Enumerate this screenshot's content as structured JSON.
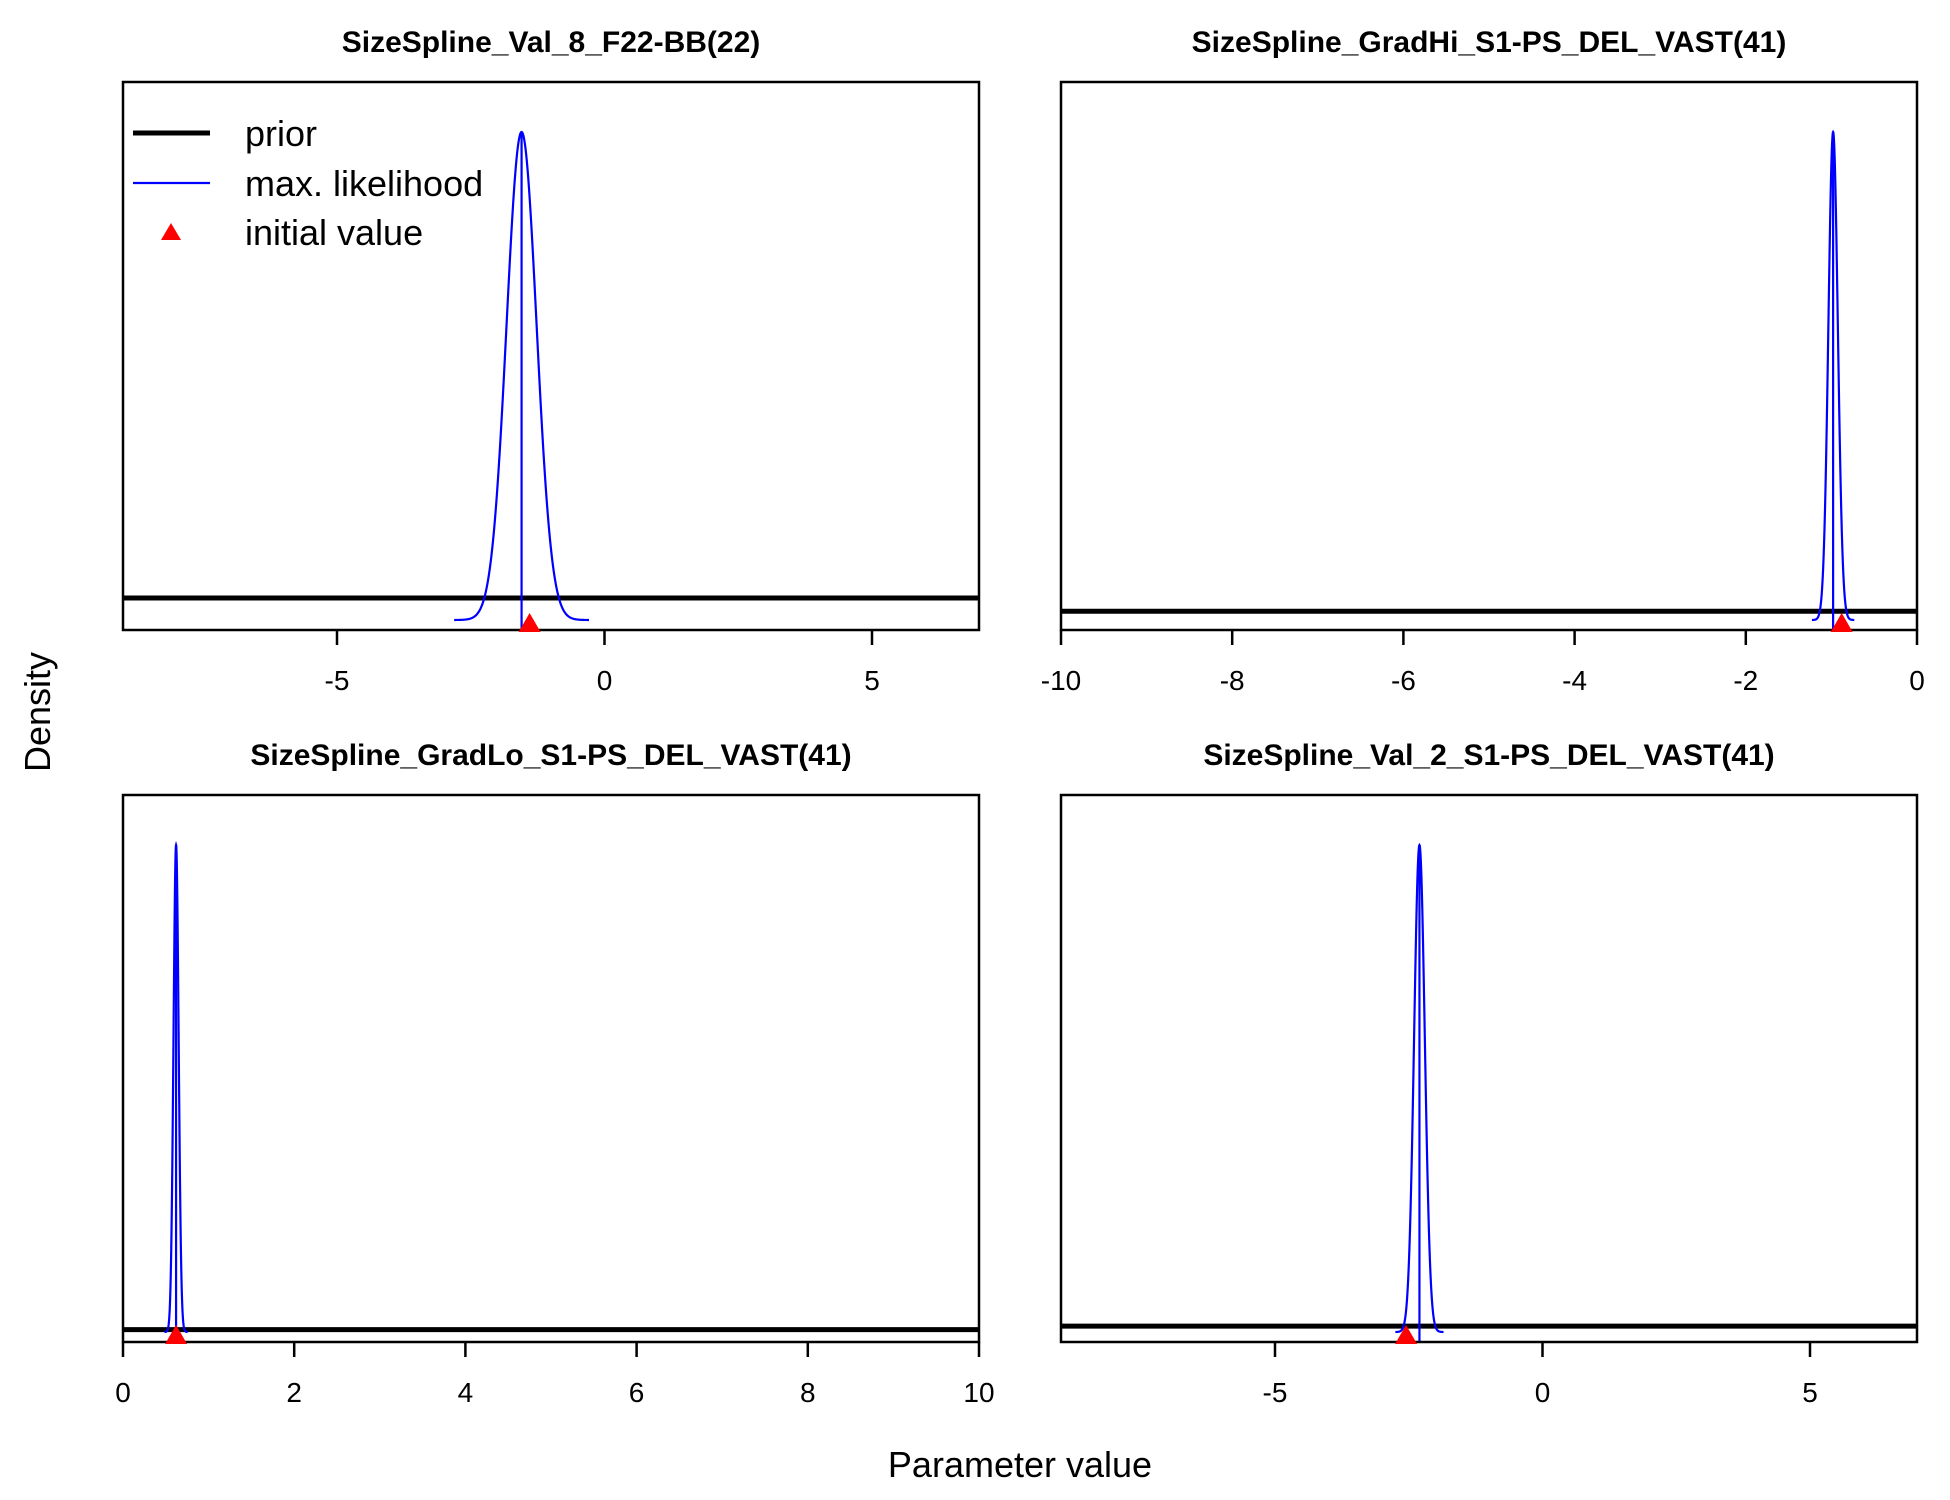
{
  "figure": {
    "xlabel": "Parameter value",
    "ylabel": "Density"
  },
  "legend": {
    "placement": "top-left of first panel",
    "items": [
      {
        "label": "prior",
        "kind": "line",
        "color": "#000000"
      },
      {
        "label": "max. likelihood",
        "kind": "line",
        "color": "#0000ff"
      },
      {
        "label": "initial value",
        "kind": "triangle",
        "color": "#ff0000"
      }
    ]
  },
  "colors": {
    "prior": "#000000",
    "max_likelihood": "#0000ff",
    "initial_value": "#ff0000"
  },
  "chart_data": [
    {
      "type": "line",
      "title": "SizeSpline_Val_8_F22-BB(22)",
      "xlim": [
        -9,
        7
      ],
      "xticks": [
        -5,
        0,
        5
      ],
      "tick_labels": [
        "-5",
        "0",
        "5"
      ],
      "prior_level": 0.045,
      "mle": {
        "mean": -1.55,
        "sd": 0.28
      },
      "initial_value": -1.4
    },
    {
      "type": "line",
      "title": "SizeSpline_GradHi_S1-PS_DEL_VAST(41)",
      "xlim": [
        -10,
        0
      ],
      "xticks": [
        -10,
        -8,
        -6,
        -4,
        -2,
        0
      ],
      "tick_labels": [
        "-10",
        "-8",
        "-6",
        "-4",
        "-2",
        "0"
      ],
      "prior_level": 0.018,
      "mle": {
        "mean": -0.98,
        "sd": 0.055
      },
      "initial_value": -0.88
    },
    {
      "type": "line",
      "title": "SizeSpline_GradLo_S1-PS_DEL_VAST(41)",
      "xlim": [
        0,
        10
      ],
      "xticks": [
        0,
        2,
        4,
        6,
        8,
        10
      ],
      "tick_labels": [
        "0",
        "2",
        "4",
        "6",
        "8",
        "10"
      ],
      "prior_level": 0.005,
      "mle": {
        "mean": 0.62,
        "sd": 0.03
      },
      "initial_value": 0.62
    },
    {
      "type": "line",
      "title": "SizeSpline_Val_2_S1-PS_DEL_VAST(41)",
      "xlim": [
        -9,
        7
      ],
      "xticks": [
        -5,
        0,
        5
      ],
      "tick_labels": [
        "-5",
        "0",
        "5"
      ],
      "prior_level": 0.012,
      "mle": {
        "mean": -2.3,
        "sd": 0.1
      },
      "initial_value": -2.55
    }
  ]
}
